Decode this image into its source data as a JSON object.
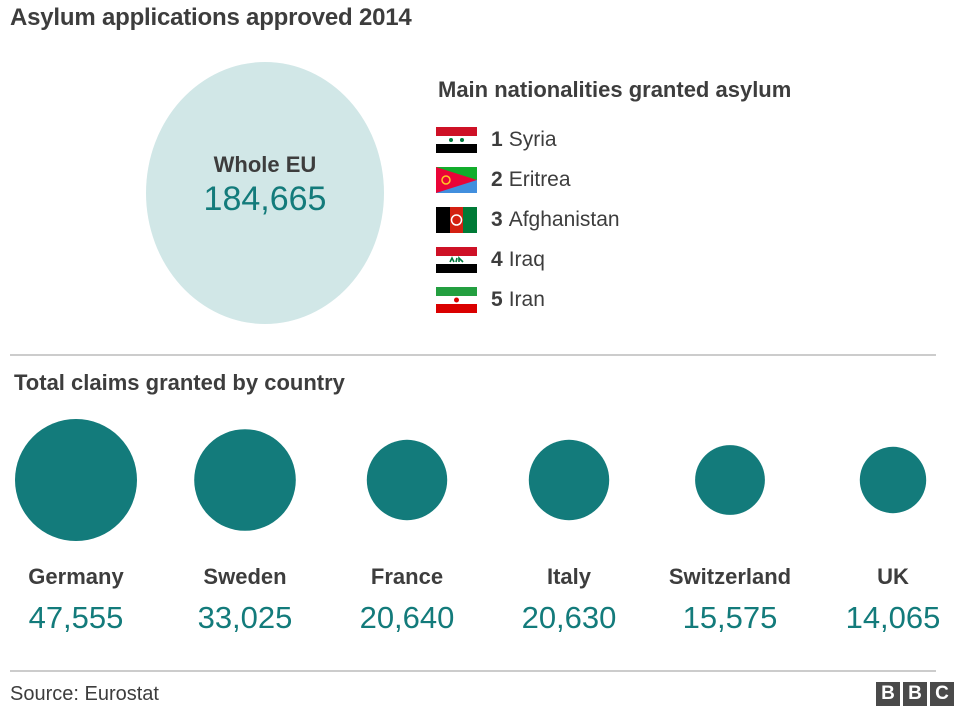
{
  "title": "Asylum applications approved 2014",
  "whole_eu": {
    "label": "Whole EU",
    "value": "184,665"
  },
  "nationalities": {
    "title": "Main nationalities granted asylum",
    "items": [
      {
        "rank": "1",
        "name": "Syria",
        "icon": "syria-flag-icon"
      },
      {
        "rank": "2",
        "name": "Eritrea",
        "icon": "eritrea-flag-icon"
      },
      {
        "rank": "3",
        "name": "Afghanistan",
        "icon": "afghanistan-flag-icon"
      },
      {
        "rank": "4",
        "name": "Iraq",
        "icon": "iraq-flag-icon"
      },
      {
        "rank": "5",
        "name": "Iran",
        "icon": "iran-flag-icon"
      }
    ]
  },
  "section_title": "Total claims granted by country",
  "colors": {
    "bubble": "#137b7b",
    "eu_bubble": "#d1e7e7",
    "value_text": "#137b7b"
  },
  "chart_data": {
    "type": "bubble",
    "title": "Total claims granted by country",
    "categories": [
      "Germany",
      "Sweden",
      "France",
      "Italy",
      "Switzerland",
      "UK"
    ],
    "values": [
      47555,
      33025,
      20640,
      20630,
      15575,
      14065
    ],
    "value_labels": [
      "47,555",
      "33,025",
      "20,640",
      "20,630",
      "15,575",
      "14,065"
    ]
  },
  "footer": {
    "source": "Source: Eurostat",
    "logo": [
      "B",
      "B",
      "C"
    ]
  }
}
